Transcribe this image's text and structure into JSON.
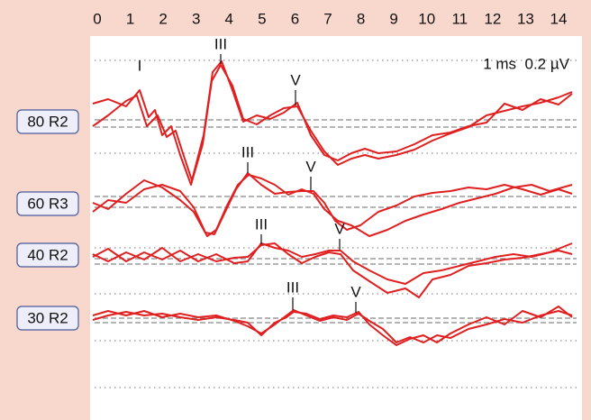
{
  "axis": {
    "ticks": [
      0,
      1,
      2,
      3,
      4,
      5,
      6,
      7,
      8,
      9,
      10,
      11,
      12,
      13,
      14
    ]
  },
  "scale_label": "1 ms  0.2 µV",
  "traces": [
    {
      "label": "80 R2",
      "peaks": [
        "I",
        "III",
        "V"
      ]
    },
    {
      "label": "60 R3",
      "peaks": [
        "III",
        "V"
      ]
    },
    {
      "label": "40 R2",
      "peaks": [
        "III",
        "V"
      ]
    },
    {
      "label": "30 R2",
      "peaks": [
        "III",
        "V"
      ]
    }
  ]
}
